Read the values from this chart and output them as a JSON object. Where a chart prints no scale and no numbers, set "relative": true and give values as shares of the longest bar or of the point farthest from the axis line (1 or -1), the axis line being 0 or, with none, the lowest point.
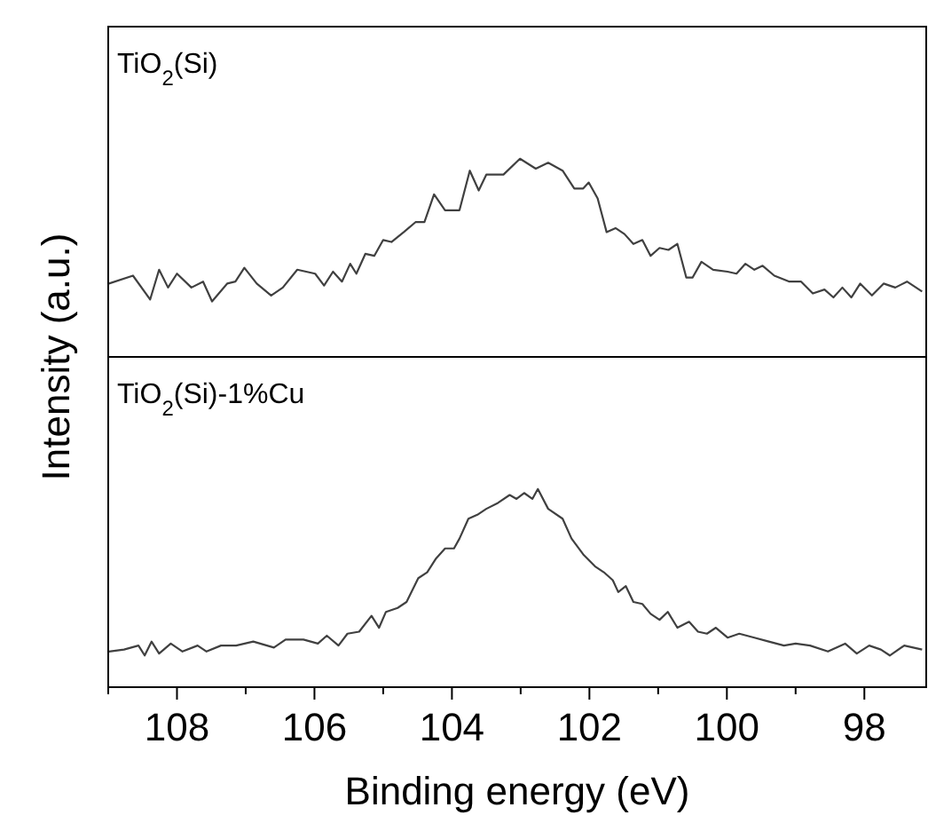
{
  "chart_data": [
    {
      "type": "line",
      "title": "TiO$_{2}$(Si)",
      "ylabel": "Intensity (a.u.)",
      "relative": true,
      "xlim": [
        109,
        97.1
      ],
      "x": [
        108.99,
        108.64,
        108.39,
        108.26,
        108.13,
        108.0,
        107.79,
        107.62,
        107.49,
        107.27,
        107.15,
        107.02,
        106.84,
        106.63,
        106.46,
        106.25,
        105.99,
        105.86,
        105.73,
        105.6,
        105.48,
        105.39,
        105.26,
        105.13,
        105.0,
        104.88,
        104.7,
        104.53,
        104.4,
        104.26,
        104.1,
        103.89,
        103.74,
        103.61,
        103.5,
        103.25,
        103.01,
        102.78,
        102.6,
        102.39,
        102.22,
        102.09,
        102.01,
        101.88,
        101.75,
        101.62,
        101.49,
        101.36,
        101.23,
        101.11,
        100.98,
        100.85,
        100.72,
        100.59,
        100.5,
        100.37,
        100.2,
        99.99,
        99.86,
        99.73,
        99.6,
        99.48,
        99.31,
        99.09,
        98.92,
        98.75,
        98.58,
        98.45,
        98.32,
        98.19,
        98.06,
        97.89,
        97.72,
        97.55,
        97.38,
        97.16
      ],
      "series": [
        {
          "color": "#404040",
          "values": [
            0.37,
            0.41,
            0.29,
            0.44,
            0.35,
            0.42,
            0.35,
            0.38,
            0.28,
            0.37,
            0.38,
            0.45,
            0.37,
            0.31,
            0.35,
            0.44,
            0.42,
            0.36,
            0.43,
            0.38,
            0.47,
            0.42,
            0.52,
            0.51,
            0.59,
            0.58,
            0.63,
            0.68,
            0.68,
            0.82,
            0.74,
            0.74,
            0.94,
            0.84,
            0.92,
            0.92,
            1.0,
            0.95,
            0.98,
            0.94,
            0.85,
            0.85,
            0.88,
            0.8,
            0.63,
            0.65,
            0.62,
            0.57,
            0.59,
            0.51,
            0.55,
            0.54,
            0.57,
            0.4,
            0.4,
            0.48,
            0.44,
            0.43,
            0.42,
            0.47,
            0.44,
            0.46,
            0.41,
            0.38,
            0.38,
            0.32,
            0.34,
            0.3,
            0.35,
            0.3,
            0.37,
            0.31,
            0.37,
            0.35,
            0.38,
            0.33
          ]
        }
      ]
    },
    {
      "type": "line",
      "title": "TiO$_{2}$(Si)-1%Cu",
      "xlabel": "Binding energy (eV)",
      "relative": true,
      "xlim": [
        109,
        97.1
      ],
      "xticks": [
        {
          "value": 109,
          "label": null
        },
        108,
        {
          "value": 107,
          "label": null
        },
        106,
        {
          "value": 105,
          "label": null
        },
        104,
        {
          "value": 103,
          "label": null
        },
        102,
        {
          "value": 101,
          "label": null
        },
        100,
        {
          "value": 99,
          "label": null
        },
        98
      ],
      "x": [
        108.99,
        108.77,
        108.56,
        108.47,
        108.37,
        108.26,
        108.09,
        107.92,
        107.7,
        107.57,
        107.36,
        107.14,
        106.89,
        106.59,
        106.42,
        106.16,
        105.95,
        105.82,
        105.65,
        105.52,
        105.35,
        105.17,
        105.06,
        104.96,
        104.79,
        104.66,
        104.49,
        104.36,
        104.23,
        104.1,
        103.97,
        103.89,
        103.76,
        103.63,
        103.5,
        103.33,
        103.16,
        103.06,
        102.95,
        102.83,
        102.75,
        102.6,
        102.39,
        102.26,
        102.09,
        101.92,
        101.79,
        101.66,
        101.58,
        101.47,
        101.36,
        101.23,
        101.11,
        100.98,
        100.86,
        100.72,
        100.55,
        100.42,
        100.29,
        100.16,
        99.99,
        99.82,
        99.6,
        99.39,
        99.17,
        99.0,
        98.79,
        98.53,
        98.28,
        98.11,
        97.93,
        97.76,
        97.63,
        97.42,
        97.16
      ],
      "series": [
        {
          "color": "#404040",
          "values": [
            0.18,
            0.19,
            0.21,
            0.16,
            0.23,
            0.17,
            0.22,
            0.18,
            0.21,
            0.18,
            0.21,
            0.21,
            0.23,
            0.2,
            0.24,
            0.24,
            0.22,
            0.26,
            0.21,
            0.27,
            0.28,
            0.36,
            0.3,
            0.38,
            0.4,
            0.43,
            0.55,
            0.58,
            0.65,
            0.7,
            0.7,
            0.75,
            0.85,
            0.87,
            0.9,
            0.93,
            0.97,
            0.95,
            0.98,
            0.95,
            1.0,
            0.9,
            0.85,
            0.75,
            0.67,
            0.61,
            0.58,
            0.54,
            0.48,
            0.51,
            0.43,
            0.42,
            0.37,
            0.34,
            0.38,
            0.3,
            0.33,
            0.28,
            0.27,
            0.3,
            0.25,
            0.27,
            0.25,
            0.23,
            0.21,
            0.22,
            0.21,
            0.18,
            0.22,
            0.17,
            0.21,
            0.19,
            0.16,
            0.21,
            0.19
          ]
        }
      ]
    }
  ]
}
